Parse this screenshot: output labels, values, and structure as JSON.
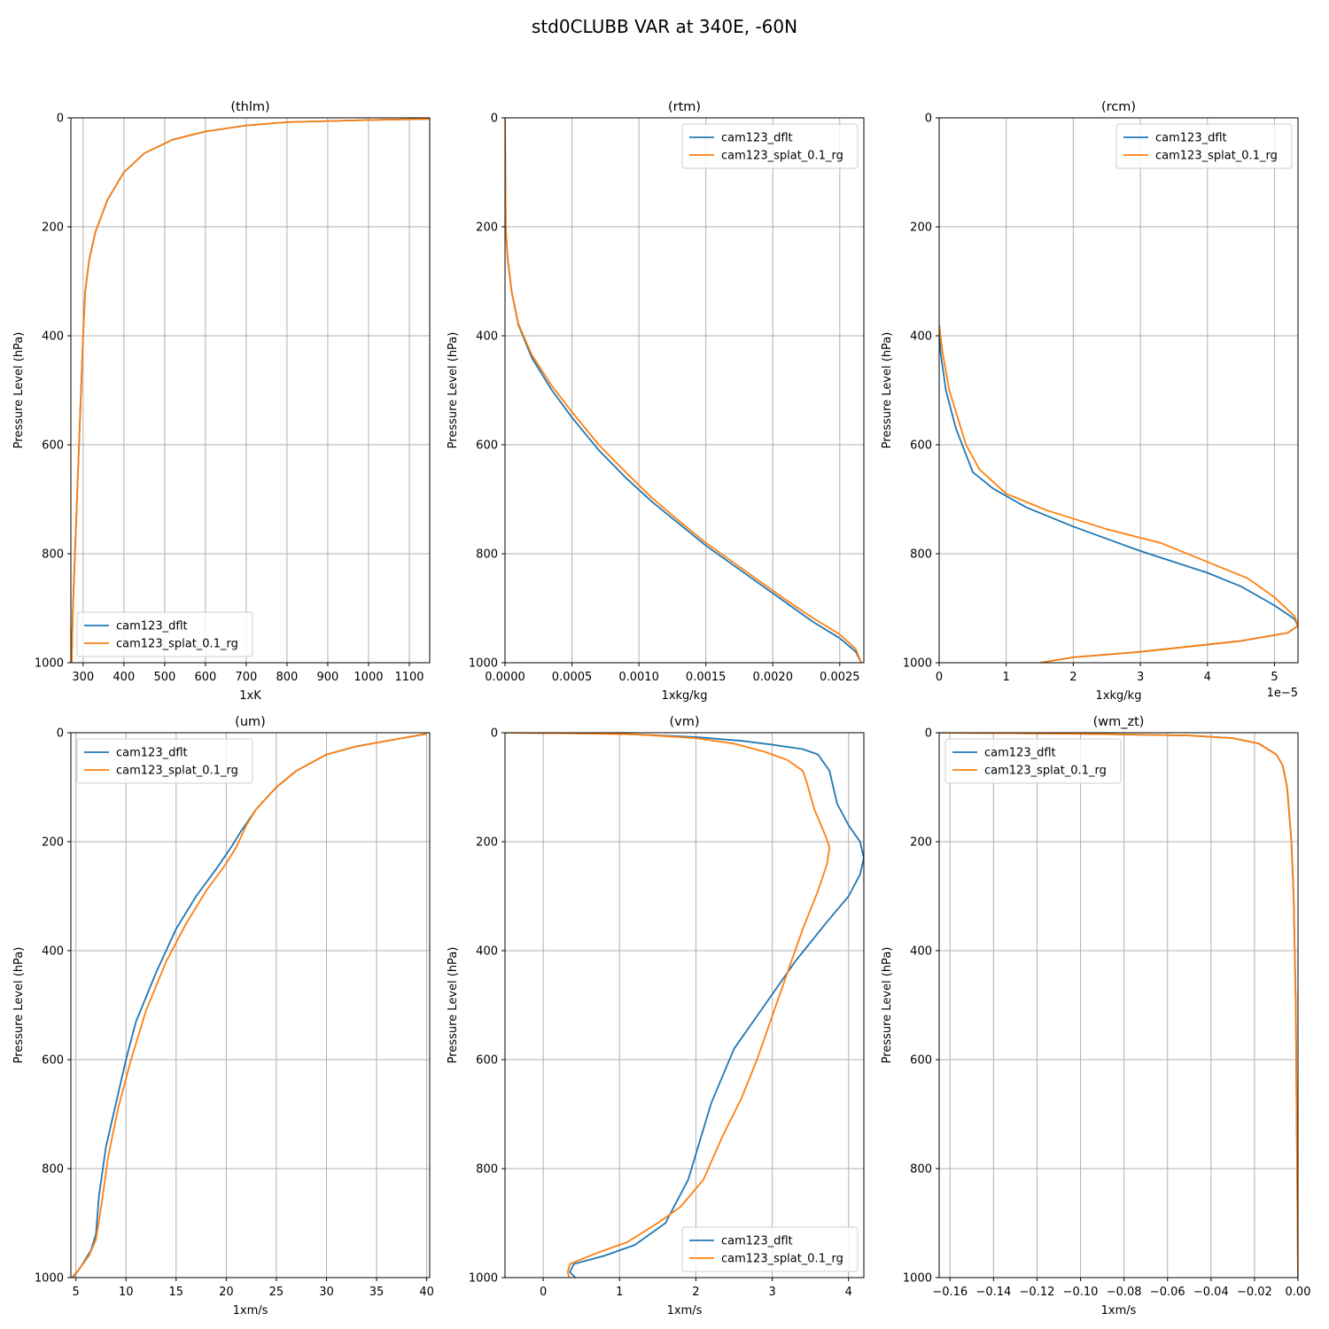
{
  "figure_title": "std0CLUBB VAR at 340E, -60N",
  "colors": {
    "cam123_dflt": "#1f77b4",
    "cam123_splat_0.1_rg": "#ff7f0e"
  },
  "chart_data": [
    {
      "type": "line",
      "title": "(thlm)",
      "xlabel": "1xK",
      "ylabel": "Pressure Level (hPa)",
      "xlim": [
        270,
        1150
      ],
      "ylim": [
        1000,
        0
      ],
      "xticks": [
        300,
        400,
        500,
        600,
        700,
        800,
        900,
        1000,
        1100
      ],
      "xtick_labels": [
        "300",
        "400",
        "500",
        "600",
        "700",
        "800",
        "900",
        "1000",
        "1100"
      ],
      "yticks": [
        0,
        200,
        400,
        600,
        800,
        1000
      ],
      "ytick_labels": [
        "0",
        "200",
        "400",
        "600",
        "800",
        "1000"
      ],
      "offset_text": "",
      "legend_loc": "lower-left",
      "grid": true,
      "series": [
        {
          "name": "cam123_dflt",
          "x": [
            1150,
            1000,
            800,
            700,
            600,
            520,
            450,
            400,
            360,
            330,
            315,
            305,
            300,
            295,
            290,
            285,
            280,
            275,
            272
          ],
          "y": [
            2,
            4,
            8,
            14,
            25,
            40,
            65,
            100,
            150,
            210,
            260,
            320,
            400,
            500,
            600,
            700,
            800,
            900,
            1000
          ]
        },
        {
          "name": "cam123_splat_0.1_rg",
          "x": [
            1150,
            1000,
            800,
            700,
            600,
            520,
            450,
            400,
            360,
            330,
            315,
            305,
            300,
            295,
            290,
            285,
            280,
            275,
            272
          ],
          "y": [
            2,
            4,
            8,
            14,
            25,
            40,
            65,
            100,
            150,
            210,
            260,
            320,
            400,
            500,
            600,
            700,
            800,
            900,
            1000
          ]
        }
      ]
    },
    {
      "type": "line",
      "title": "(rtm)",
      "xlabel": "1xkg/kg",
      "ylabel": "Pressure Level (hPa)",
      "xlim": [
        0,
        0.00268
      ],
      "ylim": [
        1000,
        0
      ],
      "xticks": [
        0,
        0.0005,
        0.001,
        0.0015,
        0.002,
        0.0025
      ],
      "xtick_labels": [
        "0.0000",
        "0.0005",
        "0.0010",
        "0.0015",
        "0.0020",
        "0.0025"
      ],
      "yticks": [
        0,
        200,
        400,
        600,
        800,
        1000
      ],
      "ytick_labels": [
        "0",
        "200",
        "400",
        "600",
        "800",
        "1000"
      ],
      "offset_text": "",
      "legend_loc": "top-right",
      "grid": true,
      "series": [
        {
          "name": "cam123_dflt",
          "x": [
            0,
            5e-06,
            2e-05,
            5e-05,
            0.0001,
            0.0002,
            0.00035,
            0.0005,
            0.0007,
            0.0009,
            0.0011,
            0.0013,
            0.0015,
            0.0017,
            0.0019,
            0.0021,
            0.0023,
            0.0025,
            0.00262,
            0.00266
          ],
          "y": [
            0,
            200,
            260,
            320,
            380,
            440,
            500,
            550,
            610,
            660,
            705,
            745,
            785,
            820,
            855,
            890,
            925,
            955,
            980,
            1000
          ]
        },
        {
          "name": "cam123_splat_0.1_rg",
          "x": [
            0,
            5e-06,
            2e-05,
            5e-05,
            0.0001,
            0.0002,
            0.00035,
            0.0005,
            0.0007,
            0.0009,
            0.0011,
            0.0013,
            0.0015,
            0.0017,
            0.0019,
            0.0021,
            0.0023,
            0.0025,
            0.00262,
            0.00266
          ],
          "y": [
            0,
            200,
            260,
            320,
            378,
            435,
            492,
            540,
            600,
            650,
            698,
            740,
            780,
            815,
            850,
            885,
            918,
            948,
            975,
            1000
          ]
        }
      ]
    },
    {
      "type": "line",
      "title": "(rcm)",
      "xlabel": "1xkg/kg",
      "ylabel": "Pressure Level (hPa)",
      "xlim": [
        0,
        5.35
      ],
      "ylim": [
        1000,
        0
      ],
      "xticks": [
        0,
        1,
        2,
        3,
        4,
        5
      ],
      "xtick_labels": [
        "0",
        "1",
        "2",
        "3",
        "4",
        "5"
      ],
      "yticks": [
        0,
        200,
        400,
        600,
        800,
        1000
      ],
      "ytick_labels": [
        "0",
        "200",
        "400",
        "600",
        "800",
        "1000"
      ],
      "offset_text": "1e−5",
      "legend_loc": "top-right",
      "grid": true,
      "series": [
        {
          "name": "cam123_dflt",
          "x": [
            0,
            0.02,
            0.1,
            0.25,
            0.5,
            0.8,
            1.3,
            2.0,
            3.0,
            4.0,
            4.5,
            5.0,
            5.3,
            5.35,
            5.2,
            4.5,
            3.0,
            2.0,
            1.5
          ],
          "y": [
            380,
            430,
            500,
            570,
            650,
            680,
            715,
            750,
            795,
            835,
            860,
            895,
            920,
            932,
            945,
            960,
            980,
            990,
            1000
          ]
        },
        {
          "name": "cam123_splat_0.1_rg",
          "x": [
            0,
            0.05,
            0.15,
            0.4,
            0.6,
            1.0,
            1.6,
            2.5,
            3.3,
            4.0,
            4.6,
            5.0,
            5.3,
            5.35,
            5.2,
            4.5,
            3.0,
            2.0,
            1.5
          ],
          "y": [
            380,
            430,
            500,
            600,
            645,
            690,
            720,
            755,
            780,
            815,
            845,
            880,
            915,
            932,
            945,
            960,
            980,
            990,
            1000
          ]
        }
      ]
    },
    {
      "type": "line",
      "title": "(um)",
      "xlabel": "1xm/s",
      "ylabel": "Pressure Level (hPa)",
      "xlim": [
        4.5,
        40.3
      ],
      "ylim": [
        1000,
        0
      ],
      "xticks": [
        5,
        10,
        15,
        20,
        25,
        30,
        35,
        40
      ],
      "xtick_labels": [
        "5",
        "10",
        "15",
        "20",
        "25",
        "30",
        "35",
        "40"
      ],
      "yticks": [
        0,
        200,
        400,
        600,
        800,
        1000
      ],
      "ytick_labels": [
        "0",
        "200",
        "400",
        "600",
        "800",
        "1000"
      ],
      "offset_text": "",
      "legend_loc": "top-left",
      "grid": true,
      "series": [
        {
          "name": "cam123_dflt",
          "x": [
            40,
            36,
            33,
            30,
            27,
            25,
            23,
            21.5,
            20.5,
            19,
            17,
            15,
            13,
            11,
            10,
            9,
            8,
            7.3,
            7.0,
            6.5,
            5.5,
            4.7
          ],
          "y": [
            2,
            15,
            25,
            40,
            70,
            100,
            140,
            180,
            210,
            250,
            300,
            360,
            440,
            530,
            600,
            680,
            760,
            850,
            920,
            950,
            980,
            1000
          ]
        },
        {
          "name": "cam123_splat_0.1_rg",
          "x": [
            40,
            36,
            33,
            30,
            27,
            25,
            23,
            22,
            21,
            20,
            18,
            16,
            14,
            12,
            10.5,
            9.2,
            8.2,
            7.6,
            7.0,
            6.3,
            5.3,
            4.6
          ],
          "y": [
            2,
            15,
            25,
            40,
            70,
            100,
            140,
            170,
            210,
            240,
            290,
            350,
            420,
            510,
            600,
            690,
            780,
            860,
            930,
            960,
            985,
            1000
          ]
        }
      ]
    },
    {
      "type": "line",
      "title": "(vm)",
      "xlabel": "1xm/s",
      "ylabel": "Pressure Level (hPa)",
      "xlim": [
        -0.5,
        4.2
      ],
      "ylim": [
        1000,
        0
      ],
      "xticks": [
        0,
        1,
        2,
        3,
        4
      ],
      "xtick_labels": [
        "0",
        "1",
        "2",
        "3",
        "4"
      ],
      "yticks": [
        0,
        200,
        400,
        600,
        800,
        1000
      ],
      "ytick_labels": [
        "0",
        "200",
        "400",
        "600",
        "800",
        "1000"
      ],
      "offset_text": "",
      "legend_loc": "bottom-right",
      "grid": true,
      "series": [
        {
          "name": "cam123_dflt",
          "x": [
            -0.5,
            0.2,
            1.0,
            2.0,
            2.6,
            3.0,
            3.4,
            3.6,
            3.75,
            3.8,
            3.85,
            4.0,
            4.15,
            4.2,
            4.15,
            4.0,
            3.7,
            3.3,
            2.9,
            2.5,
            2.2,
            1.9,
            1.6,
            1.2,
            0.8,
            0.4,
            0.35,
            0.42
          ],
          "y": [
            0,
            1,
            2,
            8,
            15,
            22,
            30,
            40,
            70,
            100,
            130,
            170,
            200,
            230,
            260,
            300,
            350,
            420,
            500,
            580,
            680,
            820,
            900,
            940,
            960,
            975,
            990,
            1000
          ]
        },
        {
          "name": "cam123_splat_0.1_rg",
          "x": [
            -0.5,
            0.3,
            1.2,
            2.0,
            2.5,
            2.9,
            3.2,
            3.4,
            3.45,
            3.55,
            3.7,
            3.75,
            3.72,
            3.6,
            3.4,
            3.2,
            3.0,
            2.8,
            2.6,
            2.35,
            2.1,
            1.8,
            1.5,
            1.1,
            0.7,
            0.35,
            0.32,
            0.34
          ],
          "y": [
            0,
            1,
            3,
            10,
            20,
            35,
            50,
            70,
            90,
            140,
            190,
            210,
            240,
            290,
            360,
            440,
            520,
            600,
            670,
            740,
            820,
            870,
            900,
            935,
            955,
            975,
            990,
            1000
          ]
        }
      ]
    },
    {
      "type": "line",
      "title": "(wm_zt)",
      "xlabel": "1xm/s",
      "ylabel": "Pressure Level (hPa)",
      "xlim": [
        -0.165,
        0.0
      ],
      "ylim": [
        1000,
        0
      ],
      "xticks": [
        -0.16,
        -0.14,
        -0.12,
        -0.1,
        -0.08,
        -0.06,
        -0.04,
        -0.02,
        0.0
      ],
      "xtick_labels": [
        "−0.16",
        "−0.14",
        "−0.12",
        "−0.10",
        "−0.08",
        "−0.06",
        "−0.04",
        "−0.02",
        "0.00"
      ],
      "yticks": [
        0,
        200,
        400,
        600,
        800,
        1000
      ],
      "ytick_labels": [
        "0",
        "200",
        "400",
        "600",
        "800",
        "1000"
      ],
      "offset_text": "",
      "legend_loc": "top-left",
      "grid": true,
      "series": [
        {
          "name": "cam123_dflt",
          "x": [
            -0.165,
            -0.1,
            -0.05,
            -0.03,
            -0.018,
            -0.01,
            -0.007,
            -0.005,
            -0.004,
            -0.003,
            -0.002,
            -0.001,
            0.0
          ],
          "y": [
            0,
            2,
            5,
            10,
            20,
            40,
            60,
            100,
            150,
            200,
            300,
            500,
            1000
          ]
        },
        {
          "name": "cam123_splat_0.1_rg",
          "x": [
            -0.165,
            -0.1,
            -0.05,
            -0.03,
            -0.018,
            -0.01,
            -0.007,
            -0.005,
            -0.004,
            -0.003,
            -0.002,
            -0.001,
            0.0
          ],
          "y": [
            0,
            2,
            5,
            10,
            20,
            40,
            60,
            100,
            150,
            200,
            300,
            500,
            1000
          ]
        }
      ]
    }
  ]
}
